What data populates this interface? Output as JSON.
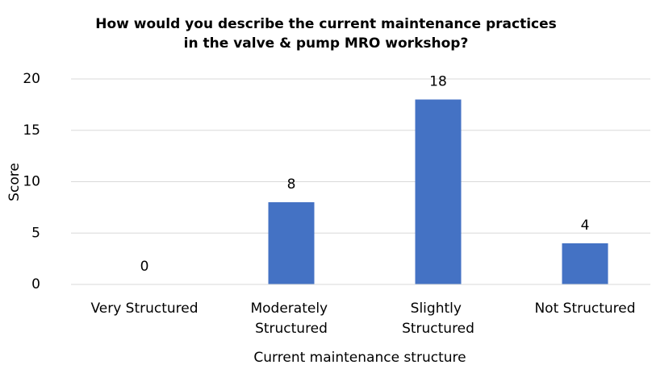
{
  "chart_data": {
    "type": "bar",
    "title": [
      "How would you describe the current maintenance practices",
      "in the valve & pump MRO workshop?"
    ],
    "categories": [
      "Very Structured",
      "Moderately Structured",
      "Slightly Structured",
      "Not Structured"
    ],
    "values": [
      0,
      8,
      18,
      4
    ],
    "color": "#4472c4",
    "xlabel": "Current maintenance structure",
    "ylabel": "Score",
    "ylim": [
      0,
      20
    ],
    "yticks": [
      0,
      5,
      10,
      15,
      20
    ],
    "grid": true
  }
}
